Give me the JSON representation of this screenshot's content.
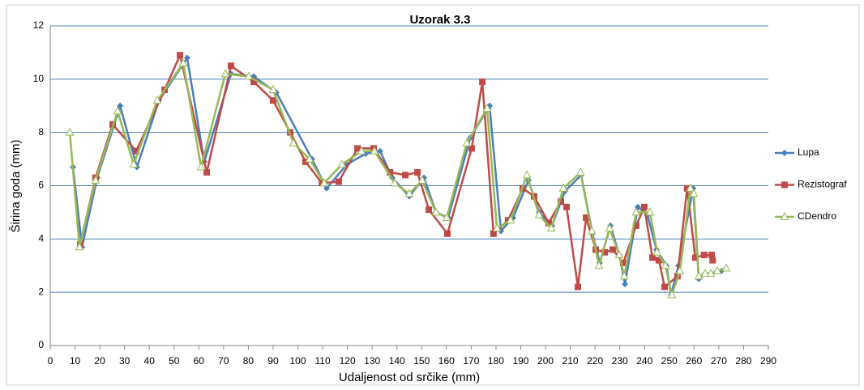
{
  "chart_data": {
    "type": "line",
    "title": "Uzorak 3.3",
    "x_label": "Udaljenost od srčike (mm)",
    "y_label": "Širina goda (mm)",
    "xlim": [
      0,
      290
    ],
    "xticks": [
      0,
      10,
      20,
      30,
      40,
      50,
      60,
      70,
      80,
      90,
      100,
      110,
      120,
      130,
      140,
      150,
      160,
      170,
      180,
      190,
      200,
      210,
      220,
      230,
      240,
      250,
      260,
      270,
      280,
      290
    ],
    "ylim": [
      0,
      12
    ],
    "yticks": [
      0,
      2,
      4,
      6,
      8,
      10,
      12
    ],
    "grid": true,
    "legend": "right",
    "series": [
      {
        "name": "Lupa",
        "color": "#4a7ebb",
        "marker": "diamond",
        "x": [
          9.2,
          12.8,
          19,
          28.2,
          35,
          43.9,
          55.3,
          62.2,
          73,
          82.2,
          91.3,
          105.7,
          111.6,
          119.8,
          127.3,
          133.2,
          138.1,
          145,
          150.9,
          155.8,
          160.7,
          169.6,
          177.4,
          182,
          186.9,
          193.1,
          197.4,
          202.6,
          207.9,
          214.4,
          219,
          221.9,
          226.2,
          229.8,
          232.1,
          237.3,
          241.2,
          244.8,
          248.8,
          250.7,
          253.7,
          259.6,
          261.9,
          264.5,
          266.8,
          269.4,
          271
        ],
        "values": [
          6.7,
          3.7,
          6.3,
          9.0,
          6.7,
          9.2,
          10.8,
          6.9,
          10.2,
          10.1,
          9.5,
          7.0,
          5.9,
          6.8,
          7.2,
          7.3,
          6.3,
          5.6,
          6.3,
          5.0,
          4.8,
          7.8,
          9.0,
          4.3,
          4.8,
          6.2,
          5.0,
          4.5,
          5.8,
          6.4,
          4.2,
          3.1,
          4.5,
          3.4,
          2.3,
          5.2,
          4.9,
          3.6,
          3.0,
          1.9,
          3.0,
          5.9,
          2.5,
          2.7,
          2.7,
          2.8,
          2.8
        ]
      },
      {
        "name": "Rezistograf",
        "color": "#be4b48",
        "marker": "square",
        "x": [
          12.1,
          18.3,
          25.2,
          34.7,
          46.2,
          52.4,
          63.2,
          73,
          82.2,
          90,
          96.9,
          103.1,
          109.7,
          116.5,
          124.1,
          130.6,
          137.2,
          143.4,
          148.3,
          152.9,
          160.4,
          170.2,
          174.5,
          179,
          184.9,
          190.8,
          195.4,
          201.3,
          206.2,
          208.5,
          213.1,
          216.4,
          220.3,
          223.9,
          227.2,
          231.4,
          236.6,
          239.9,
          243.2,
          245.8,
          248.1,
          253.3,
          257.2,
          260.5,
          264.1,
          267.1,
          267.5
        ],
        "values": [
          3.8,
          6.3,
          8.3,
          7.3,
          9.6,
          10.9,
          6.5,
          10.5,
          9.9,
          9.2,
          8.0,
          6.9,
          6.1,
          6.15,
          7.4,
          7.4,
          6.5,
          6.4,
          6.5,
          5.1,
          4.2,
          7.4,
          9.9,
          4.2,
          4.7,
          5.9,
          5.6,
          4.6,
          5.4,
          5.2,
          2.2,
          4.8,
          3.6,
          3.5,
          3.6,
          3.1,
          4.5,
          5.2,
          3.3,
          3.2,
          2.2,
          2.6,
          5.9,
          3.3,
          3.4,
          3.4,
          3.2
        ]
      },
      {
        "name": "CDendro",
        "color": "#98b954",
        "marker": "triangle",
        "x": [
          7.9,
          11.8,
          18.3,
          27.2,
          33.7,
          43.2,
          53.7,
          60.9,
          70.7,
          80.2,
          90,
          98.2,
          104.7,
          110.6,
          117.8,
          125.7,
          130.9,
          139.1,
          145,
          150.2,
          155.8,
          160.1,
          168.2,
          176.4,
          180.4,
          185.9,
          192.5,
          197.4,
          202.3,
          207.2,
          214.1,
          218.7,
          221.6,
          225.9,
          229.8,
          231.8,
          236.6,
          242.2,
          245.1,
          248.4,
          251,
          254.3,
          258.5,
          259.9,
          261.9,
          264.5,
          266.8,
          269.4,
          273
        ],
        "values": [
          8.0,
          3.7,
          6.2,
          8.8,
          6.8,
          9.2,
          10.6,
          6.7,
          10.2,
          10.1,
          9.6,
          7.6,
          7.0,
          6.1,
          6.8,
          7.3,
          7.3,
          6.1,
          5.7,
          6.2,
          5.0,
          4.8,
          7.6,
          8.9,
          4.4,
          4.7,
          6.4,
          4.9,
          4.4,
          5.9,
          6.5,
          4.3,
          3.0,
          4.4,
          3.4,
          2.6,
          5.0,
          5.0,
          3.5,
          3.0,
          1.9,
          2.8,
          5.9,
          5.7,
          2.6,
          2.7,
          2.7,
          2.8,
          2.9
        ]
      }
    ]
  }
}
